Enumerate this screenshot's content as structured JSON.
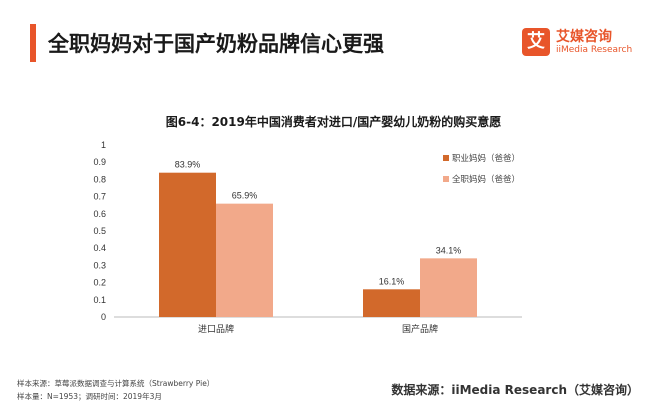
{
  "header": {
    "title": "全职妈妈对于国产奶粉品牌信心更强",
    "logo_mark": "艾",
    "logo_cn": "艾媒咨询",
    "logo_en": "iiMedia Research"
  },
  "colors": {
    "accent": "#e8552a",
    "series_dark": "#d2692b",
    "series_light": "#f2a98a"
  },
  "chart_data": {
    "type": "bar",
    "title": "图6-4：2019年中国消费者对进口/国产婴幼儿奶粉的购买意愿",
    "categories": [
      "进口品牌",
      "国产品牌"
    ],
    "series": [
      {
        "name": "职业妈妈（爸爸）",
        "values": [
          0.839,
          0.161
        ],
        "labels": [
          "83.9%",
          "16.1%"
        ],
        "color": "#d2692b"
      },
      {
        "name": "全职妈妈（爸爸）",
        "values": [
          0.659,
          0.341
        ],
        "labels": [
          "65.9%",
          "34.1%"
        ],
        "color": "#f2a98a"
      }
    ],
    "ylim": [
      0,
      1
    ],
    "yticks": [
      "0",
      "0.1",
      "0.2",
      "0.3",
      "0.4",
      "0.5",
      "0.6",
      "0.7",
      "0.8",
      "0.9",
      "1"
    ],
    "grid": false,
    "legend": "right"
  },
  "footer": {
    "source_line": "样本来源：草莓派数据调查与计算系统（Strawberry   Pie）",
    "sample_line": "样本量：N=1953；调研时间：2019年3月",
    "data_source": "数据来源：iiMedia Research（艾媒咨询）"
  }
}
